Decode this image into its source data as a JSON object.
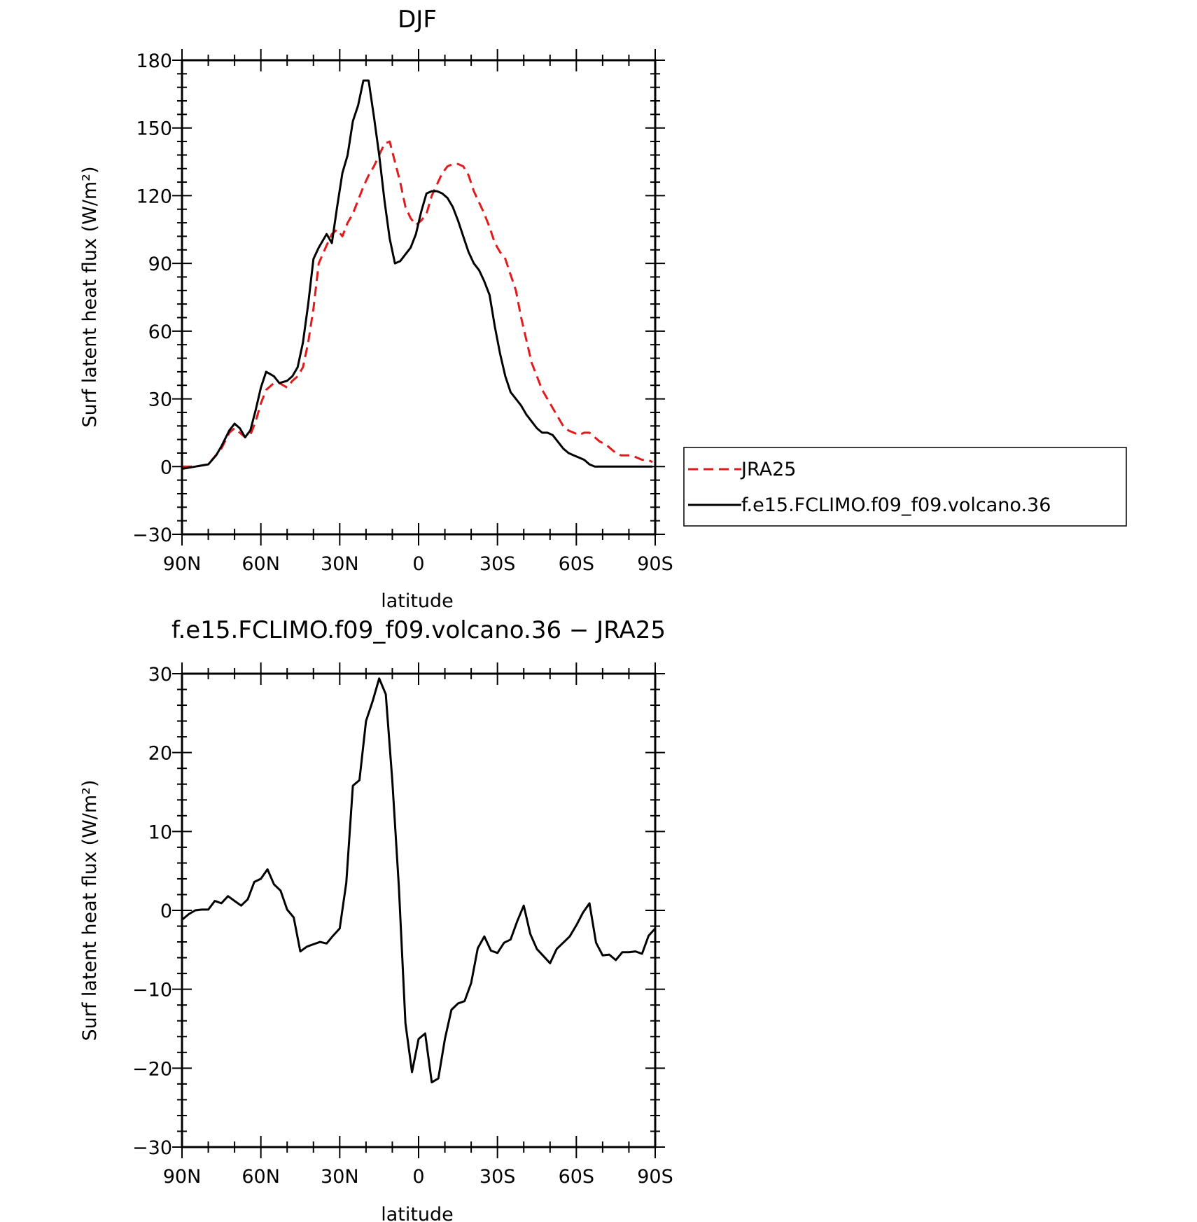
{
  "colors": {
    "JRA25": "#e31a1c",
    "model": "#000000"
  },
  "chart_data": [
    {
      "type": "line",
      "title": "DJF",
      "xlabel": "latitude",
      "ylabel": "Surf latent heat flux (W/m²)",
      "xlim": [
        90,
        -90
      ],
      "ylim": [
        -30,
        180
      ],
      "xticks": [
        90,
        60,
        30,
        0,
        -30,
        -60,
        -90
      ],
      "xtick_labels": [
        "90N",
        "60N",
        "30N",
        "0",
        "30S",
        "60S",
        "90S"
      ],
      "yticks": [
        -30,
        0,
        30,
        60,
        90,
        120,
        150,
        180
      ],
      "ytick_labels": [
        "−30",
        "0",
        "30",
        "60",
        "90",
        "120",
        "150",
        "180"
      ],
      "legend": "outside-right",
      "series": [
        {
          "name": "JRA25",
          "style": "dashed",
          "color": "#e31a1c",
          "x": [
            90,
            85,
            80,
            75,
            72,
            70,
            68,
            66,
            64,
            62,
            60,
            58,
            55,
            53,
            50,
            48,
            46,
            44,
            42,
            40,
            38,
            35,
            33,
            31,
            29,
            27,
            25,
            23,
            21,
            19,
            17,
            15,
            13,
            11,
            9,
            7,
            5,
            3,
            1,
            -1,
            -3,
            -5,
            -7,
            -9,
            -11,
            -13,
            -15,
            -17,
            -19,
            -21,
            -23,
            -25,
            -27,
            -29,
            -31,
            -33,
            -35,
            -37,
            -39,
            -41,
            -43,
            -45,
            -47,
            -49,
            -51,
            -53,
            -55,
            -57,
            -59,
            -61,
            -63,
            -65,
            -67,
            -69,
            -71,
            -73,
            -75,
            -77,
            -79,
            -81,
            -83,
            -85,
            -87,
            -89
          ],
          "values": [
            0,
            0,
            1,
            8,
            15,
            17,
            15,
            13,
            14,
            20,
            28,
            34,
            37,
            37,
            35,
            38,
            40,
            44,
            55,
            70,
            90,
            98,
            103,
            105,
            102,
            108,
            112,
            118,
            124,
            129,
            133,
            138,
            143,
            144,
            135,
            126,
            115,
            110,
            107,
            109,
            112,
            120,
            125,
            130,
            133,
            134,
            134,
            133,
            129,
            122,
            117,
            112,
            106,
            99,
            95,
            92,
            85,
            78,
            66,
            56,
            46,
            40,
            34,
            30,
            26,
            22,
            18,
            16,
            15,
            14,
            15,
            15,
            13,
            11,
            10,
            8,
            6,
            5,
            5,
            5,
            4,
            3,
            3,
            2
          ]
        },
        {
          "name": "f.e15.FCLIMO.f09_f09.volcano.36",
          "style": "solid",
          "color": "#000000",
          "x": [
            90,
            85,
            80,
            77,
            75,
            72,
            70,
            68,
            66,
            64,
            62,
            60,
            58,
            55,
            53,
            50,
            48,
            46,
            44,
            42,
            40,
            38,
            35,
            33,
            31,
            29,
            27,
            25,
            23,
            21,
            19,
            17,
            15,
            13,
            11,
            9,
            7,
            5,
            3,
            1,
            -1,
            -3,
            -5,
            -7,
            -9,
            -11,
            -13,
            -15,
            -17,
            -19,
            -21,
            -23,
            -25,
            -27,
            -29,
            -31,
            -33,
            -35,
            -37,
            -39,
            -41,
            -43,
            -45,
            -47,
            -49,
            -51,
            -53,
            -55,
            -57,
            -59,
            -61,
            -63,
            -65,
            -67,
            -69,
            -71,
            -73,
            -75,
            -77,
            -79,
            -81,
            -83,
            -85,
            -87,
            -89
          ],
          "values": [
            -1,
            0,
            1,
            5,
            9,
            16,
            19,
            17,
            13,
            16,
            25,
            35,
            42,
            40,
            37,
            38,
            40,
            44,
            55,
            72,
            92,
            97,
            103,
            99,
            115,
            130,
            138,
            153,
            160,
            171,
            171,
            155,
            138,
            118,
            101,
            90,
            91,
            94,
            97,
            103,
            113,
            121,
            122,
            122,
            121,
            119,
            115,
            109,
            102,
            95,
            90,
            87,
            82,
            76,
            62,
            50,
            40,
            33,
            30,
            27,
            23,
            20,
            17,
            15,
            15,
            14,
            11,
            8,
            6,
            5,
            4,
            3,
            1,
            0,
            0,
            0,
            0,
            0,
            0,
            0,
            0,
            0,
            0,
            0,
            0
          ]
        }
      ]
    },
    {
      "type": "line",
      "title": "f.e15.FCLIMO.f09_f09.volcano.36 − JRA25",
      "xlabel": "latitude",
      "ylabel": "Surf latent heat flux (W/m²)",
      "xlim": [
        90,
        -90
      ],
      "ylim": [
        -30,
        30
      ],
      "xticks": [
        90,
        60,
        30,
        0,
        -30,
        -60,
        -90
      ],
      "xtick_labels": [
        "90N",
        "60N",
        "30N",
        "0",
        "30S",
        "60S",
        "90S"
      ],
      "yticks": [
        -30,
        -20,
        -10,
        0,
        10,
        20,
        30
      ],
      "ytick_labels": [
        "−30",
        "−20",
        "−10",
        "0",
        "10",
        "20",
        "30"
      ],
      "series": [
        {
          "name": "f.e15.FCLIMO.f09_f09.volcano.36 − JRA25",
          "style": "solid",
          "color": "#000000",
          "x": [
            90,
            87.5,
            85,
            82.5,
            80,
            77.5,
            75,
            72.5,
            70,
            67.5,
            65,
            62.5,
            60,
            57.5,
            55,
            52.5,
            50,
            47.5,
            45,
            42.5,
            40,
            37.5,
            35,
            32.5,
            30,
            27.5,
            25,
            22.5,
            20,
            17.5,
            15,
            12.5,
            10,
            7.5,
            5,
            2.5,
            0,
            -2.5,
            -5,
            -7.5,
            -10,
            -12.5,
            -15,
            -17.5,
            -20,
            -22.5,
            -25,
            -27.5,
            -30,
            -32.5,
            -35,
            -37.5,
            -40,
            -42.5,
            -45,
            -47.5,
            -50,
            -52.5,
            -55,
            -57.5,
            -60,
            -62.5,
            -65,
            -67.5,
            -70,
            -72.5,
            -75,
            -77.5,
            -80,
            -82.5,
            -85,
            -87.5,
            -90
          ],
          "values": [
            -1.2,
            -0.5,
            0,
            0.1,
            0.1,
            1.2,
            0.9,
            1.8,
            1.2,
            0.6,
            1.4,
            3.6,
            4.0,
            5.2,
            3.3,
            2.5,
            0.1,
            -0.9,
            -5.2,
            -4.6,
            -4.3,
            -4.0,
            -4.2,
            -3.2,
            -2.3,
            3.5,
            15.8,
            16.5,
            24.0,
            26.5,
            29.4,
            27.4,
            16.5,
            3.0,
            -14.3,
            -20.5,
            -16.3,
            -15.6,
            -21.8,
            -21.3,
            -16.3,
            -12.6,
            -11.8,
            -11.5,
            -9.2,
            -4.8,
            -3.3,
            -5.1,
            -5.4,
            -4.1,
            -3.7,
            -1.4,
            0.6,
            -3.0,
            -4.9,
            -5.8,
            -6.7,
            -4.9,
            -4.1,
            -3.3,
            -1.9,
            -0.3,
            0.9,
            -4.1,
            -5.7,
            -5.6,
            -6.3,
            -5.3,
            -5.3,
            -5.2,
            -5.5,
            -3.2,
            -2.3
          ]
        }
      ]
    }
  ]
}
